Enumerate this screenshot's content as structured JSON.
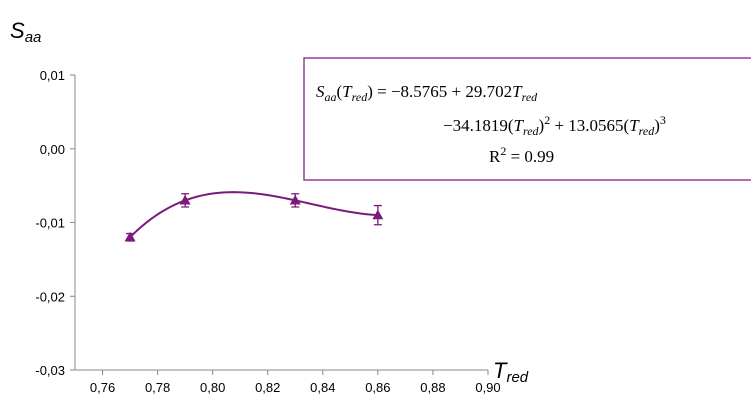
{
  "chart_data": {
    "type": "scatter",
    "ylabel": {
      "main": "S",
      "sub": "aa"
    },
    "xlabel": {
      "main": "T",
      "sub": "red"
    },
    "xlim": [
      0.75,
      0.9
    ],
    "ylim": [
      -0.03,
      0.01
    ],
    "xticks": [
      "0,76",
      "0,78",
      "0,80",
      "0,82",
      "0,84",
      "0,86",
      "0,88",
      "0,90"
    ],
    "xtick_values": [
      0.76,
      0.78,
      0.8,
      0.82,
      0.84,
      0.86,
      0.88,
      0.9
    ],
    "yticks": [
      "0,01",
      "0,00",
      "-0,01",
      "-0,02",
      "-0,03"
    ],
    "ytick_values": [
      0.01,
      0.0,
      -0.01,
      -0.02,
      -0.03
    ],
    "grid": false,
    "series": [
      {
        "x": [
          0.77,
          0.79,
          0.83,
          0.86
        ],
        "y": [
          -0.012,
          -0.007,
          -0.007,
          -0.009
        ],
        "yerr": [
          0.0005,
          0.0009,
          0.0009,
          0.0013
        ],
        "marker": "triangle",
        "color": "#7b1a7b"
      }
    ],
    "fit": {
      "coefficients": [
        -8.5765,
        29.702,
        -34.1819,
        13.0565
      ],
      "x_range": [
        0.77,
        0.86
      ],
      "color": "#7b1a7b"
    },
    "annotation": {
      "line1": {
        "lhs_main": "S",
        "lhs_sub": "aa",
        "lhs_arg_main": "T",
        "lhs_arg_sub": "red",
        "rhs": " = −8.5765 + 29.702",
        "rhs_var_main": "T",
        "rhs_var_sub": "red"
      },
      "line2": {
        "prefix": "−34.1819(",
        "var_main": "T",
        "var_sub": "red",
        "mid": ")",
        "sup1": "2",
        "plus": " + 13.0565(",
        "var2_main": "T",
        "var2_sub": "red",
        "close": ")",
        "sup2": "3"
      },
      "line3": {
        "r_main": "R",
        "r_sup": "2",
        "r_rest": " = 0.99"
      },
      "border_color": "#9b3a9b"
    }
  }
}
